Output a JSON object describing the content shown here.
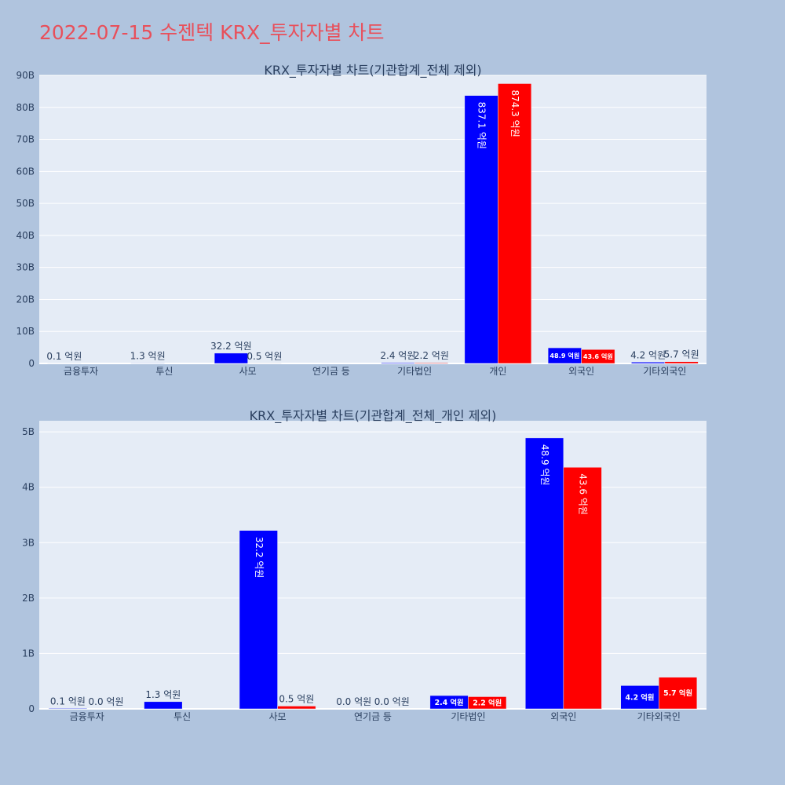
{
  "title": "2022-07-15 수젠텍 KRX_투자자별 차트",
  "chart_data": [
    {
      "type": "bar",
      "title": "KRX_투자자별 차트(기관합계_전체 제외)",
      "categories": [
        "금융투자",
        "투신",
        "사모",
        "연기금 등",
        "기타법인",
        "개인",
        "외국인",
        "기타외국인"
      ],
      "ylim": [
        0,
        90
      ],
      "yticks": [
        0,
        10,
        20,
        30,
        40,
        50,
        60,
        70,
        80,
        90
      ],
      "ytick_labels": [
        "0",
        "10B",
        "20B",
        "30B",
        "40B",
        "50B",
        "60B",
        "70B",
        "80B",
        "90B"
      ],
      "series": [
        {
          "color": "#0000ff",
          "values": [
            0.01,
            0.13,
            3.22,
            0,
            0.24,
            83.71,
            4.89,
            0.42
          ],
          "labels": [
            "0.1 억원",
            "1.3 억원",
            "32.2 억원",
            "",
            "2.4 억원",
            "837.1 억원",
            "48.9 억원",
            "4.2 억원"
          ]
        },
        {
          "color": "#ff0000",
          "values": [
            0,
            0,
            0.05,
            0,
            0.22,
            87.43,
            4.36,
            0.57
          ],
          "labels": [
            "",
            "",
            "0.5 억원",
            "",
            "2.2 억원",
            "874.3 억원",
            "43.6 억원",
            "5.7 억원"
          ]
        }
      ]
    },
    {
      "type": "bar",
      "title": "KRX_투자자별 차트(기관합계_전체_개인 제외)",
      "categories": [
        "금융투자",
        "투신",
        "사모",
        "연기금 등",
        "기타법인",
        "외국인",
        "기타외국인"
      ],
      "ylim": [
        0,
        5.2
      ],
      "yticks": [
        0,
        1,
        2,
        3,
        4,
        5
      ],
      "ytick_labels": [
        "0",
        "1B",
        "2B",
        "3B",
        "4B",
        "5B"
      ],
      "series": [
        {
          "color": "#0000ff",
          "values": [
            0.01,
            0.13,
            3.22,
            0,
            0.24,
            4.89,
            0.42
          ],
          "labels": [
            "0.1 억원",
            "1.3 억원",
            "32.2 억원",
            "0.0 억원",
            "2.4 억원",
            "48.9 억원",
            "4.2 억원"
          ]
        },
        {
          "color": "#ff0000",
          "values": [
            0,
            0,
            0.05,
            0,
            0.22,
            4.36,
            0.57
          ],
          "labels": [
            "0.0 억원",
            "",
            "0.5 억원",
            "0.0 억원",
            "2.2 억원",
            "43.6 억원",
            "5.7 억원"
          ]
        }
      ]
    }
  ]
}
